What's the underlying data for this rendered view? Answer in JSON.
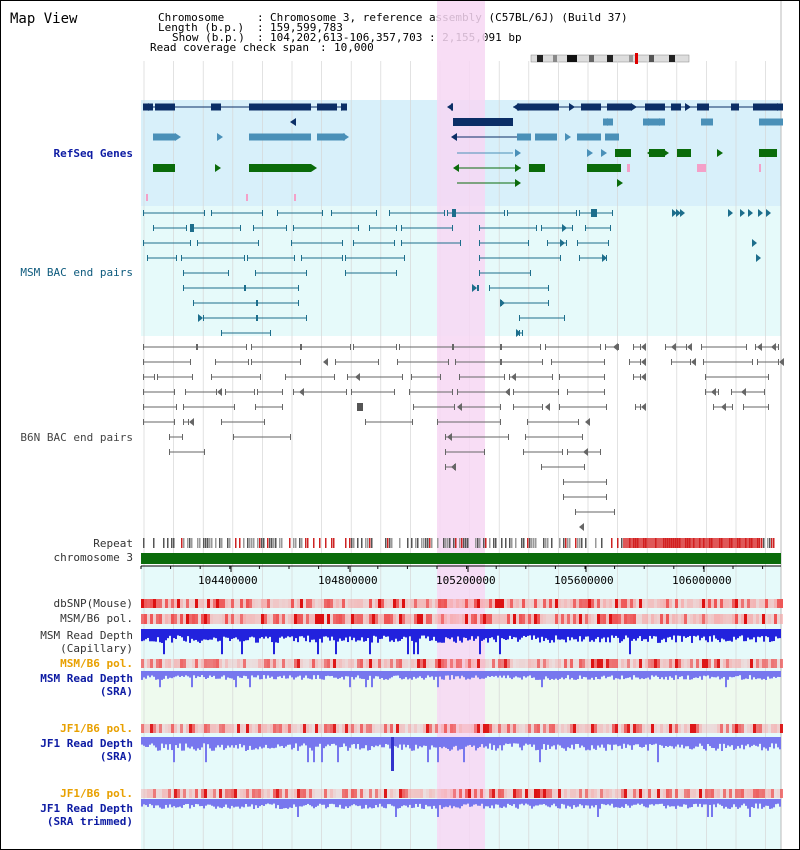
{
  "page": {
    "title": "Map View"
  },
  "header": {
    "chromosome_key": "Chromosome",
    "chromosome_value": "Chromosome 3, reference assembly (C57BL/6J) (Build 37)",
    "length_key": "Length (b.p.)",
    "length_value": "159,599,783",
    "show_key": "Show (b.p.)",
    "show_value": "104,202,613-106,357,703 : 2,155,091 bp",
    "coverage_key": "Read coverage check span",
    "coverage_value": "10,000"
  },
  "tracks": {
    "refseq": "RefSeq Genes",
    "msm_bac": "MSM BAC end pairs",
    "b6n_bac": "B6N BAC end pairs",
    "repeat": "Repeat",
    "chromosome": "chromosome 3",
    "dbsnp": "dbSNP(Mouse)",
    "msm_pol1": "MSM/B6 pol.",
    "msm_depth_cap_1": "MSM Read Depth",
    "msm_depth_cap_2": "(Capillary)",
    "msm_pol2": "MSM/B6 pol.",
    "msm_depth_sra_1": "MSM Read Depth",
    "msm_depth_sra_2": "(SRA)",
    "jf1_pol1": "JF1/B6 pol.",
    "jf1_depth_sra_1": "JF1 Read Depth",
    "jf1_depth_sra_2": "(SRA)",
    "jf1_pol2": "JF1/B6 pol.",
    "jf1_depth_trim_1": "JF1 Read Depth",
    "jf1_depth_trim_2": "(SRA trimmed)"
  },
  "axis": {
    "ticks": [
      "104400000",
      "104800000",
      "105200000",
      "105600000",
      "106000000"
    ]
  },
  "colors": {
    "refseq_bg": "#d8f0fa",
    "bac_bg": "#e6fafa",
    "highlight": "#f7d7f3",
    "gene_dark": "#0b2e66",
    "gene_mid": "#4a90b8",
    "gene_green": "#0a6b0a",
    "bac_teal": "#1d6e8c",
    "bac_gray": "#666666",
    "depth_blue": "#2222dd",
    "depth_light": "#7777ee",
    "pol_red": "#ee6666",
    "chrom_green": "#0a6b0a"
  }
}
